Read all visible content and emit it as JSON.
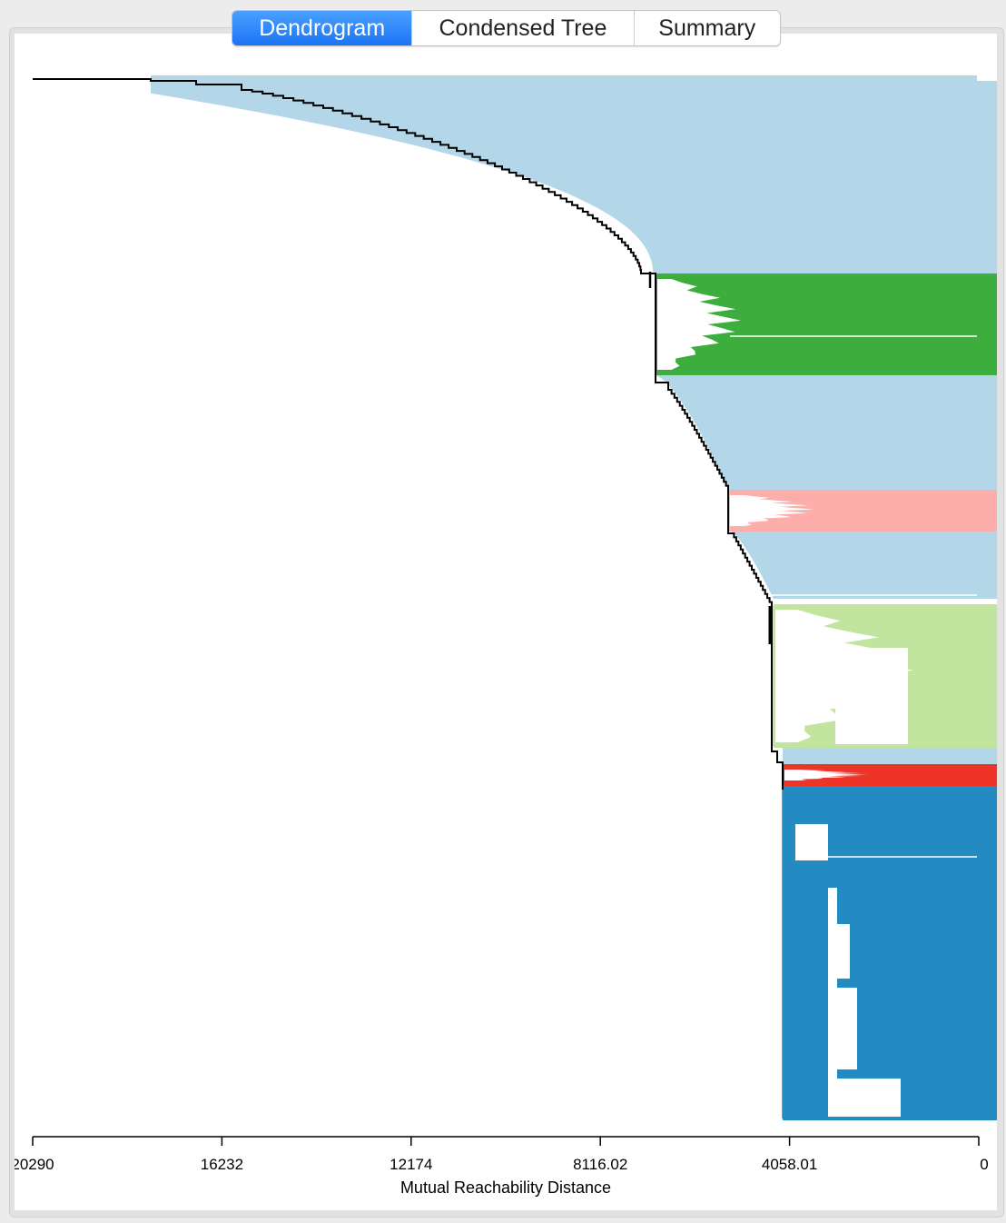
{
  "tabs": [
    {
      "label": "Dendrogram",
      "active": true
    },
    {
      "label": "Condensed Tree",
      "active": false
    },
    {
      "label": "Summary",
      "active": false
    }
  ],
  "chart_data": {
    "type": "dendrogram",
    "xlabel": "Mutual Reachability Distance",
    "xlim": [
      20290,
      0
    ],
    "x_ticks": [
      "20290",
      "16232",
      "12174",
      "8116.02",
      "4058.01",
      "0"
    ],
    "background_color": "#b3d6e8",
    "clusters": [
      {
        "color": "#3dae3d",
        "merge_distance": 6850,
        "start_distance": 6700
      },
      {
        "color": "#fdaeaa",
        "merge_distance": 5300,
        "start_distance": 5300
      },
      {
        "color": "#c1e49f",
        "merge_distance": 4420,
        "start_distance": 4420
      },
      {
        "color": "#ee3426",
        "merge_distance": 4230,
        "start_distance": 4230
      },
      {
        "color": "#238bc2",
        "merge_distance": 4200,
        "start_distance": 4200
      }
    ]
  }
}
